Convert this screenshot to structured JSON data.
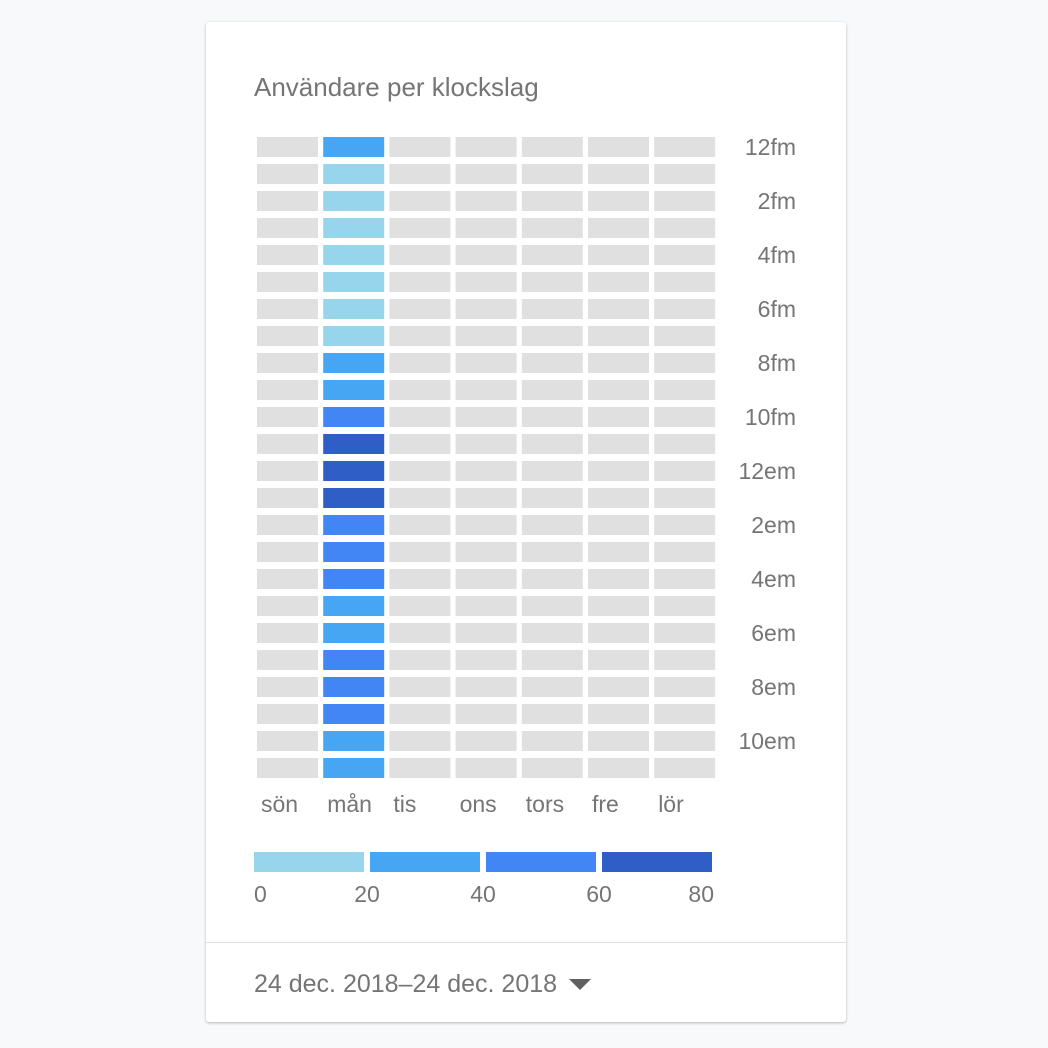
{
  "card": {
    "title": "Användare per klockslag",
    "date_range": "24 dec. 2018–24 dec. 2018",
    "dropdown_icon": "caret-down-icon"
  },
  "chart_data": {
    "type": "heatmap",
    "title": "Användare per klockslag",
    "days": [
      "sön",
      "mån",
      "tis",
      "ons",
      "tors",
      "fre",
      "lör"
    ],
    "hour_labels": [
      "12fm",
      "2fm",
      "4fm",
      "6fm",
      "8fm",
      "10fm",
      "12em",
      "2em",
      "4em",
      "6em",
      "8em",
      "10em"
    ],
    "hours_per_day": 24,
    "value_buckets": [
      {
        "range": [
          0,
          20
        ],
        "color": "#97d5ed"
      },
      {
        "range": [
          20,
          40
        ],
        "color": "#47a6f4"
      },
      {
        "range": [
          40,
          60
        ],
        "color": "#4285f4"
      },
      {
        "range": [
          60,
          80
        ],
        "color": "#2f5ec6"
      }
    ],
    "legend_ticks": [
      0,
      20,
      40,
      60,
      80
    ],
    "empty_color": "#e0e0e0",
    "series": [
      {
        "name": "sön",
        "values": [
          0,
          0,
          0,
          0,
          0,
          0,
          0,
          0,
          0,
          0,
          0,
          0,
          0,
          0,
          0,
          0,
          0,
          0,
          0,
          0,
          0,
          0,
          0,
          0
        ]
      },
      {
        "name": "mån",
        "values": [
          30,
          10,
          10,
          10,
          10,
          10,
          10,
          10,
          30,
          30,
          50,
          70,
          70,
          70,
          50,
          50,
          50,
          30,
          30,
          50,
          50,
          50,
          30,
          30
        ]
      },
      {
        "name": "tis",
        "values": [
          0,
          0,
          0,
          0,
          0,
          0,
          0,
          0,
          0,
          0,
          0,
          0,
          0,
          0,
          0,
          0,
          0,
          0,
          0,
          0,
          0,
          0,
          0,
          0
        ]
      },
      {
        "name": "ons",
        "values": [
          0,
          0,
          0,
          0,
          0,
          0,
          0,
          0,
          0,
          0,
          0,
          0,
          0,
          0,
          0,
          0,
          0,
          0,
          0,
          0,
          0,
          0,
          0,
          0
        ]
      },
      {
        "name": "tors",
        "values": [
          0,
          0,
          0,
          0,
          0,
          0,
          0,
          0,
          0,
          0,
          0,
          0,
          0,
          0,
          0,
          0,
          0,
          0,
          0,
          0,
          0,
          0,
          0,
          0
        ]
      },
      {
        "name": "fre",
        "values": [
          0,
          0,
          0,
          0,
          0,
          0,
          0,
          0,
          0,
          0,
          0,
          0,
          0,
          0,
          0,
          0,
          0,
          0,
          0,
          0,
          0,
          0,
          0,
          0
        ]
      },
      {
        "name": "lör",
        "values": [
          0,
          0,
          0,
          0,
          0,
          0,
          0,
          0,
          0,
          0,
          0,
          0,
          0,
          0,
          0,
          0,
          0,
          0,
          0,
          0,
          0,
          0,
          0,
          0
        ]
      }
    ]
  }
}
